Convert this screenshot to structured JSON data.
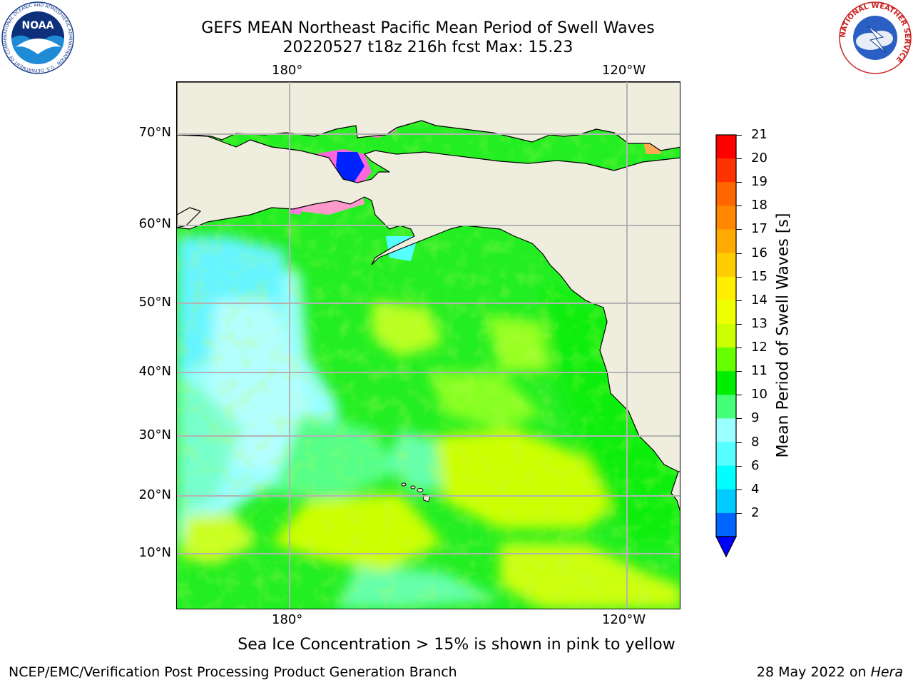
{
  "title": {
    "line1": "GEFS MEAN Northeast Pacific Mean Period of Swell Waves",
    "line2": "20220527 t18z 216h fcst   Max: 15.23"
  },
  "map": {
    "top_lon_labels": [
      "180°",
      "120°W"
    ],
    "bottom_lon_labels": [
      "180°",
      "120°W"
    ],
    "lat_labels": [
      "70°N",
      "60°N",
      "50°N",
      "40°N",
      "30°N",
      "20°N",
      "10°N"
    ],
    "land_color": "#efedde",
    "grid_color": "#b3b3b3"
  },
  "colorbar": {
    "title": "Mean Period of Swell Waves [s]",
    "ticks": [
      "21",
      "20",
      "19",
      "18",
      "17",
      "16",
      "15",
      "14",
      "13",
      "12",
      "11",
      "10",
      "9",
      "8",
      "6",
      "4",
      "2"
    ],
    "colors": [
      "#ff0000",
      "#ff3300",
      "#ff6600",
      "#ff8800",
      "#ffaa00",
      "#ffcc00",
      "#ffee00",
      "#eeff00",
      "#ccff00",
      "#66ff00",
      "#00ee00",
      "#44ff77",
      "#99ffff",
      "#55ffff",
      "#00ffff",
      "#00ccff",
      "#0066ff"
    ],
    "extend_color": "#0000ff"
  },
  "note": "Sea Ice Concentration > 15% is shown in pink to yellow",
  "footer": {
    "left": "NCEP/EMC/Verification Post Processing Product Generation Branch",
    "date": "28 May 2022 on ",
    "machine": "Hera"
  },
  "logos": {
    "noaa_text": "NOAA",
    "noaa_ring": "NATIONAL OCEANIC AND ATMOSPHERIC ADMINISTRATION · U.S. DEPARTMENT OF COMMERCE",
    "nws_ring": "NATIONAL WEATHER SERVICE"
  }
}
